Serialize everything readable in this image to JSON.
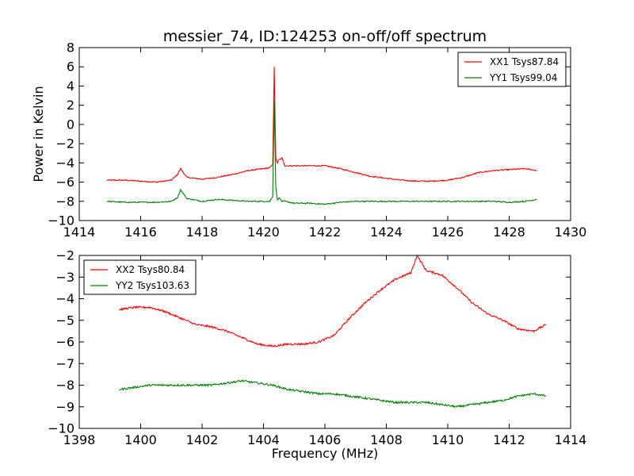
{
  "figure": {
    "title": "messier_74, ID:124253 on-off/off spectrum",
    "xlabel": "Frequency (MHz)",
    "ylabel_top": "Power in Kelvin"
  },
  "chart_data": [
    {
      "type": "line",
      "title": "messier_74, ID:124253 on-off/off spectrum",
      "xlabel": "",
      "ylabel": "Power in Kelvin",
      "xlim": [
        1414,
        1430
      ],
      "ylim": [
        -10,
        8
      ],
      "xticks": [
        1414,
        1416,
        1418,
        1420,
        1422,
        1424,
        1426,
        1428,
        1430
      ],
      "yticks": [
        -10,
        -8,
        -6,
        -4,
        -2,
        0,
        2,
        4,
        6,
        8
      ],
      "grid": false,
      "legend_position": "top-right",
      "series": [
        {
          "name": "XX1 Tsys87.84",
          "color": "#ff0000",
          "x": [
            1414.9,
            1415.5,
            1416.0,
            1416.5,
            1417.0,
            1417.2,
            1417.3,
            1417.5,
            1418.0,
            1418.5,
            1419.0,
            1419.5,
            1420.0,
            1420.2,
            1420.3,
            1420.35,
            1420.4,
            1420.45,
            1420.5,
            1420.6,
            1420.7,
            1421.0,
            1421.5,
            1422.0,
            1422.5,
            1423.0,
            1423.5,
            1424.0,
            1424.5,
            1425.0,
            1425.5,
            1426.0,
            1426.5,
            1427.0,
            1427.5,
            1428.0,
            1428.5,
            1428.9
          ],
          "y": [
            -5.8,
            -5.8,
            -5.9,
            -6.0,
            -5.8,
            -5.2,
            -4.6,
            -5.5,
            -5.7,
            -5.5,
            -5.2,
            -4.8,
            -4.6,
            -4.5,
            -4.2,
            6.0,
            -3.5,
            -4.0,
            -3.7,
            -3.5,
            -4.3,
            -4.3,
            -4.3,
            -4.3,
            -4.6,
            -5.0,
            -5.4,
            -5.6,
            -5.8,
            -5.9,
            -5.9,
            -5.8,
            -5.5,
            -5.0,
            -4.8,
            -4.7,
            -4.6,
            -4.8
          ]
        },
        {
          "name": "YY1 Tsys99.04",
          "color": "#008000",
          "x": [
            1414.9,
            1415.5,
            1416.0,
            1416.5,
            1417.0,
            1417.2,
            1417.3,
            1417.5,
            1418.0,
            1418.5,
            1419.0,
            1419.5,
            1420.0,
            1420.2,
            1420.3,
            1420.35,
            1420.4,
            1420.45,
            1420.5,
            1420.6,
            1420.7,
            1421.0,
            1421.5,
            1422.0,
            1422.5,
            1423.0,
            1423.5,
            1424.0,
            1424.5,
            1425.0,
            1425.5,
            1426.0,
            1426.5,
            1427.0,
            1427.5,
            1428.0,
            1428.5,
            1428.9
          ],
          "y": [
            -8.0,
            -8.1,
            -8.1,
            -8.1,
            -8.0,
            -7.6,
            -6.8,
            -7.7,
            -8.0,
            -7.8,
            -7.9,
            -8.0,
            -8.0,
            -8.0,
            -7.5,
            2.5,
            -6.5,
            -7.9,
            -7.6,
            -8.0,
            -8.0,
            -8.2,
            -8.2,
            -8.3,
            -8.1,
            -8.0,
            -8.0,
            -8.0,
            -8.0,
            -8.0,
            -8.0,
            -8.0,
            -8.0,
            -8.0,
            -8.0,
            -8.1,
            -8.0,
            -7.8
          ]
        }
      ]
    },
    {
      "type": "line",
      "title": "",
      "xlabel": "Frequency (MHz)",
      "ylabel": "",
      "xlim": [
        1398,
        1414
      ],
      "ylim": [
        -10,
        -2
      ],
      "xticks": [
        1398,
        1400,
        1402,
        1404,
        1406,
        1408,
        1410,
        1412,
        1414
      ],
      "yticks": [
        -10,
        -9,
        -8,
        -7,
        -6,
        -5,
        -4,
        -3,
        -2
      ],
      "grid": false,
      "legend_position": "top-left",
      "series": [
        {
          "name": "XX2 Tsys80.84",
          "color": "#ff0000",
          "x": [
            1399.3,
            1399.8,
            1400.3,
            1400.8,
            1401.3,
            1401.8,
            1402.3,
            1402.8,
            1403.3,
            1403.8,
            1404.3,
            1404.8,
            1405.3,
            1405.8,
            1406.3,
            1406.8,
            1407.3,
            1407.8,
            1408.3,
            1408.8,
            1409.0,
            1409.3,
            1409.8,
            1410.3,
            1410.8,
            1411.3,
            1411.8,
            1412.3,
            1412.8,
            1413.2
          ],
          "y": [
            -4.5,
            -4.4,
            -4.4,
            -4.6,
            -4.9,
            -5.2,
            -5.3,
            -5.5,
            -5.8,
            -6.1,
            -6.2,
            -6.1,
            -6.1,
            -6.0,
            -5.7,
            -4.9,
            -4.2,
            -3.6,
            -3.1,
            -2.8,
            -2.0,
            -2.7,
            -2.9,
            -3.5,
            -4.2,
            -4.7,
            -5.0,
            -5.4,
            -5.5,
            -5.2
          ]
        },
        {
          "name": "YY2 Tsys103.63",
          "color": "#008000",
          "x": [
            1399.3,
            1399.8,
            1400.3,
            1400.8,
            1401.3,
            1401.8,
            1402.3,
            1402.8,
            1403.3,
            1403.8,
            1404.3,
            1404.8,
            1405.3,
            1405.8,
            1406.3,
            1406.8,
            1407.3,
            1407.8,
            1408.3,
            1408.8,
            1409.3,
            1409.8,
            1410.3,
            1410.8,
            1411.3,
            1411.8,
            1412.3,
            1412.8,
            1413.2
          ],
          "y": [
            -8.2,
            -8.1,
            -8.0,
            -8.0,
            -8.0,
            -8.0,
            -8.0,
            -7.9,
            -7.8,
            -7.9,
            -8.0,
            -8.2,
            -8.3,
            -8.4,
            -8.4,
            -8.5,
            -8.6,
            -8.7,
            -8.8,
            -8.8,
            -8.8,
            -8.9,
            -9.0,
            -8.9,
            -8.8,
            -8.7,
            -8.5,
            -8.4,
            -8.5
          ]
        }
      ]
    }
  ]
}
